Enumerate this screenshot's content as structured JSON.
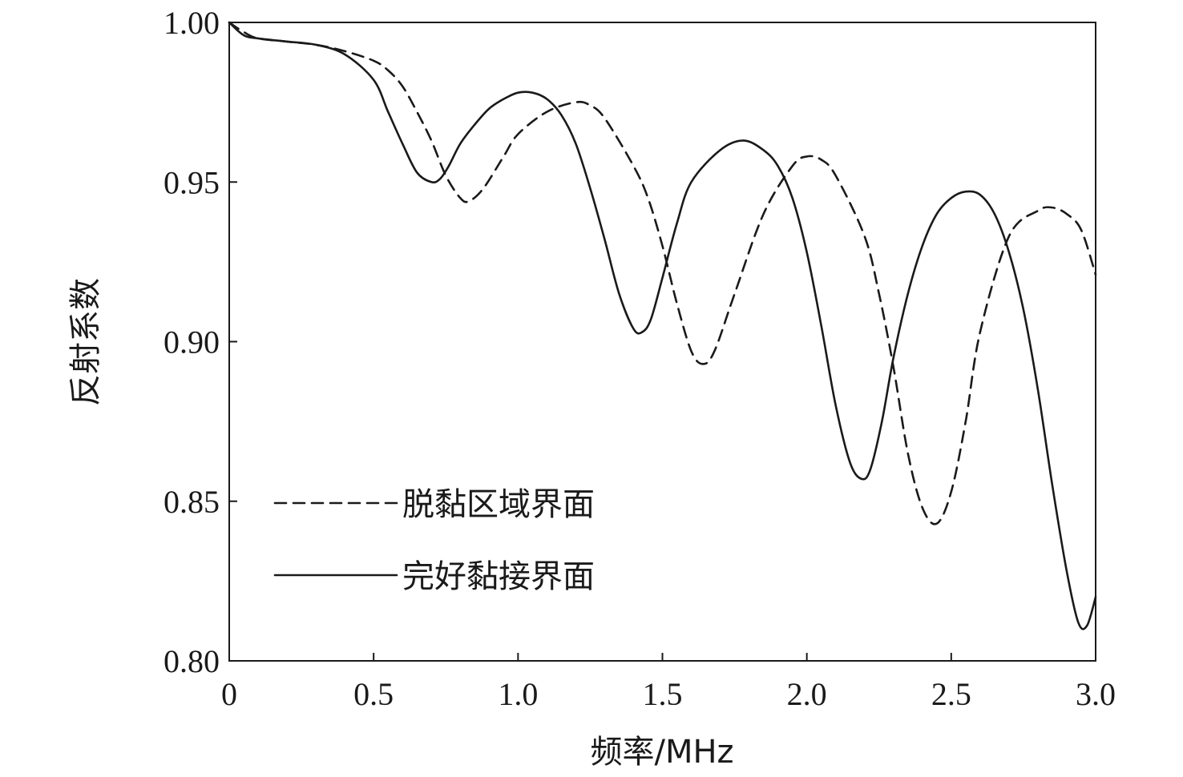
{
  "chart_data": {
    "type": "line",
    "title": "",
    "xlabel": "频率/MHz",
    "ylabel": "反射系数",
    "xlim": [
      0,
      3.0
    ],
    "ylim": [
      0.8,
      1.0
    ],
    "xticks": [
      0,
      0.5,
      1.0,
      1.5,
      2.0,
      2.5,
      3.0
    ],
    "xtick_labels": [
      "0",
      "0.5",
      "1.0",
      "1.5",
      "2.0",
      "2.5",
      "3.0"
    ],
    "yticks": [
      0.8,
      0.85,
      0.9,
      0.95,
      1.0
    ],
    "ytick_labels": [
      "0.80",
      "0.85",
      "0.90",
      "0.95",
      "1.00"
    ],
    "grid": false,
    "legend_position": "lower-left",
    "series": [
      {
        "name": "脱黏区域界面",
        "style": "dashed",
        "color": "#1a1a1a",
        "x": [
          0,
          0.05,
          0.1,
          0.2,
          0.3,
          0.4,
          0.5,
          0.55,
          0.6,
          0.65,
          0.7,
          0.75,
          0.8,
          0.83,
          0.88,
          0.95,
          1.0,
          1.1,
          1.2,
          1.25,
          1.3,
          1.4,
          1.45,
          1.5,
          1.55,
          1.6,
          1.64,
          1.68,
          1.75,
          1.85,
          1.95,
          2.0,
          2.05,
          2.1,
          2.2,
          2.25,
          2.3,
          2.35,
          2.4,
          2.45,
          2.5,
          2.55,
          2.6,
          2.7,
          2.8,
          2.85,
          2.9,
          2.95,
          3.0
        ],
        "y": [
          1.0,
          0.997,
          0.995,
          0.994,
          0.993,
          0.991,
          0.988,
          0.985,
          0.98,
          0.972,
          0.963,
          0.952,
          0.945,
          0.944,
          0.948,
          0.958,
          0.965,
          0.972,
          0.975,
          0.974,
          0.97,
          0.955,
          0.945,
          0.93,
          0.912,
          0.897,
          0.893,
          0.897,
          0.915,
          0.94,
          0.955,
          0.958,
          0.957,
          0.952,
          0.933,
          0.915,
          0.892,
          0.865,
          0.848,
          0.843,
          0.853,
          0.875,
          0.903,
          0.933,
          0.941,
          0.942,
          0.94,
          0.935,
          0.921
        ]
      },
      {
        "name": "完好黏接界面",
        "style": "solid",
        "color": "#1a1a1a",
        "x": [
          0,
          0.05,
          0.1,
          0.2,
          0.3,
          0.4,
          0.5,
          0.55,
          0.6,
          0.65,
          0.7,
          0.73,
          0.76,
          0.8,
          0.85,
          0.9,
          0.95,
          1.0,
          1.05,
          1.1,
          1.15,
          1.2,
          1.25,
          1.3,
          1.35,
          1.4,
          1.43,
          1.46,
          1.5,
          1.55,
          1.6,
          1.7,
          1.78,
          1.85,
          1.9,
          1.95,
          2.0,
          2.05,
          2.1,
          2.15,
          2.19,
          2.22,
          2.26,
          2.3,
          2.35,
          2.4,
          2.45,
          2.5,
          2.55,
          2.6,
          2.65,
          2.7,
          2.75,
          2.8,
          2.85,
          2.9,
          2.94,
          2.97,
          3.0
        ],
        "y": [
          1.0,
          0.996,
          0.995,
          0.994,
          0.993,
          0.99,
          0.982,
          0.972,
          0.962,
          0.953,
          0.95,
          0.951,
          0.955,
          0.962,
          0.968,
          0.973,
          0.976,
          0.978,
          0.978,
          0.976,
          0.971,
          0.962,
          0.948,
          0.932,
          0.915,
          0.904,
          0.903,
          0.907,
          0.92,
          0.937,
          0.95,
          0.96,
          0.963,
          0.96,
          0.955,
          0.945,
          0.928,
          0.905,
          0.88,
          0.862,
          0.857,
          0.86,
          0.875,
          0.895,
          0.915,
          0.93,
          0.94,
          0.945,
          0.947,
          0.946,
          0.94,
          0.928,
          0.91,
          0.885,
          0.855,
          0.828,
          0.812,
          0.811,
          0.82
        ]
      }
    ]
  }
}
